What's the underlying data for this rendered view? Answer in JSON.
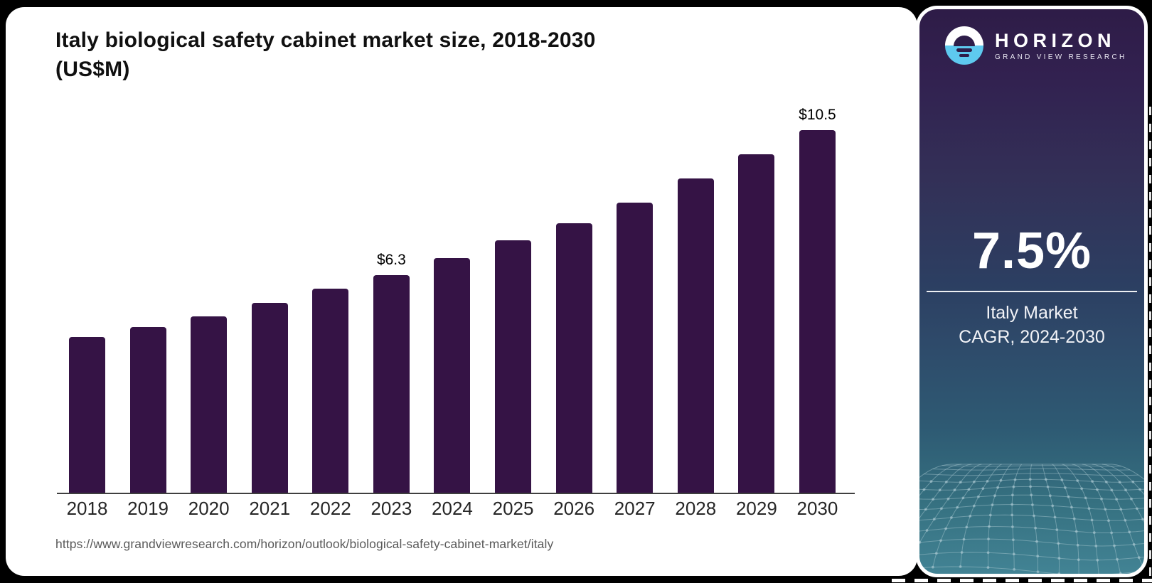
{
  "page": {
    "title_line1": "Italy biological safety cabinet market size, 2018-2030",
    "title_line2": "(US$M)",
    "source_url": "https://www.grandviewresearch.com/horizon/outlook/biological-safety-cabinet-market/italy"
  },
  "chart_data": {
    "type": "bar",
    "title": "Italy biological safety cabinet market size, 2018-2030 (US$M)",
    "categories": [
      "2018",
      "2019",
      "2020",
      "2021",
      "2022",
      "2023",
      "2024",
      "2025",
      "2026",
      "2027",
      "2028",
      "2029",
      "2030"
    ],
    "values": [
      4.5,
      4.8,
      5.1,
      5.5,
      5.9,
      6.3,
      6.8,
      7.3,
      7.8,
      8.4,
      9.1,
      9.8,
      10.5
    ],
    "data_labels": {
      "2023": "$6.3",
      "2030": "$10.5"
    },
    "bar_color": "#351345",
    "axis_color": "#3f3f3f",
    "ylim": [
      0,
      10.5
    ],
    "grid": false,
    "legend": false
  },
  "sidebar": {
    "brand_name": "HORIZON",
    "brand_subtitle": "GRAND VIEW RESEARCH",
    "stat_value": "7.5%",
    "stat_label_line1": "Italy Market",
    "stat_label_line2": "CAGR, 2024-2030",
    "colors": {
      "logo_accent_blue": "#5ec9ef",
      "gradient_top": "#2e1c47",
      "gradient_bottom": "#428394",
      "mesh_line": "#a7c6cf"
    }
  }
}
